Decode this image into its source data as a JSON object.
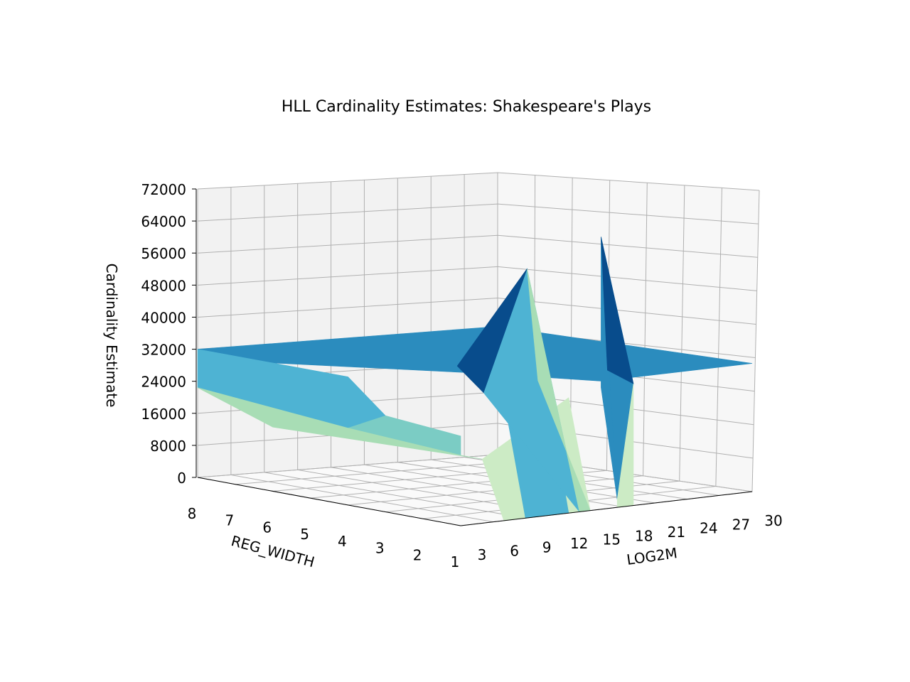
{
  "chart_data": {
    "type": "surface",
    "title": "HLL Cardinality Estimates: Shakespeare's Plays",
    "xlabel": "LOG2M",
    "ylabel": "REG_WIDTH",
    "zlabel": "Cardinality Estimate",
    "x_ticks": [
      "3",
      "6",
      "9",
      "12",
      "15",
      "18",
      "21",
      "24",
      "27",
      "30"
    ],
    "y_ticks": [
      "1",
      "2",
      "3",
      "4",
      "5",
      "6",
      "7",
      "8"
    ],
    "z_ticks": [
      "0",
      "8000",
      "16000",
      "24000",
      "32000",
      "40000",
      "48000",
      "56000",
      "64000",
      "72000"
    ],
    "xlim": [
      3,
      30
    ],
    "ylim": [
      1,
      8
    ],
    "zlim": [
      0,
      72000
    ],
    "colormap": "GnBu",
    "grid": true,
    "plateau_value": 32000,
    "spikes": [
      {
        "log2m": 16,
        "reg_width": 3,
        "value": 57000
      },
      {
        "log2m": 16,
        "reg_width": 1,
        "value": 68000
      }
    ]
  },
  "colors": {
    "pane_left": "#f2f2f2",
    "pane_right": "#f7f7f7",
    "pane_floor": "#fafafa",
    "grid": "#b0b0b0",
    "surface_dark": "#084c8c",
    "surface_mid": "#2b8cbe",
    "surface_light": "#4eb3d3",
    "surface_teal": "#7bccc4",
    "surface_mint": "#a8ddb5",
    "surface_pale": "#ccebc5"
  }
}
